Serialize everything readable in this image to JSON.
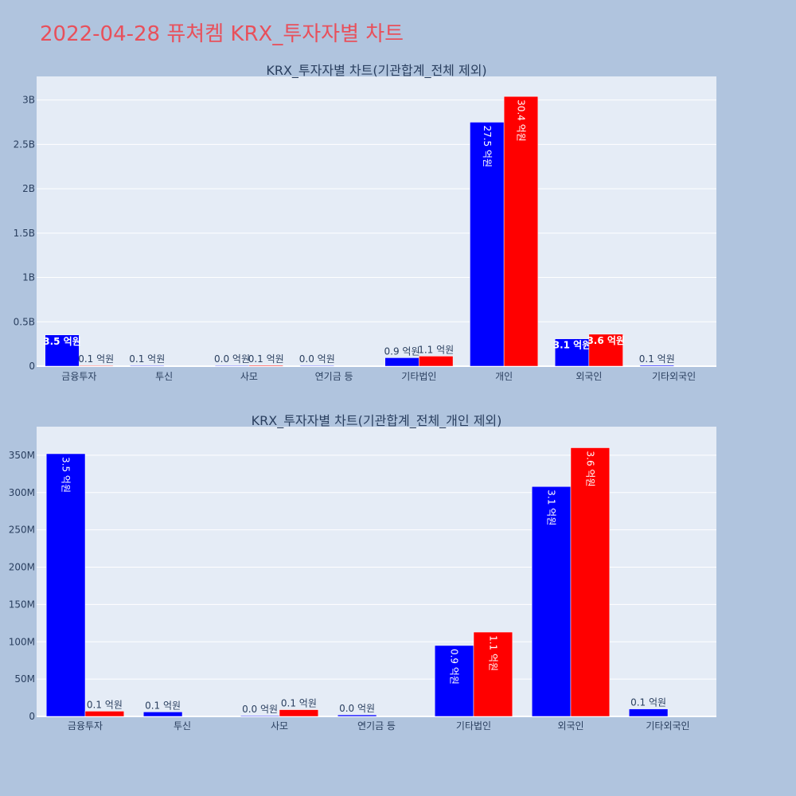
{
  "page": {
    "title": "2022-04-28 퓨쳐켐 KRX_투자자별 차트"
  },
  "colors": {
    "series_a": "#0000ff",
    "series_b": "#ff0000",
    "plot_bg": "#e5ecf6",
    "page_bg": "#b0c4de",
    "title": "#e8505b"
  },
  "chart_data": [
    {
      "type": "bar",
      "title": "KRX_투자자별 차트(기관합계_전체 제외)",
      "categories": [
        "금융투자",
        "투신",
        "사모",
        "연기금 등",
        "기타법인",
        "개인",
        "외국인",
        "기타외국인"
      ],
      "series": [
        {
          "values": [
            352000000,
            6000000,
            1000000,
            2000000,
            95000000,
            2750000000,
            308000000,
            10000000
          ],
          "labels": [
            "3.5 억원",
            "0.1 억원",
            "0.0 억원",
            "0.0 억원",
            "0.9 억원",
            "27.5 억원",
            "3.1 억원",
            "0.1 억원"
          ]
        },
        {
          "values": [
            7000000,
            null,
            9000000,
            null,
            113000000,
            3040000000,
            360000000,
            null
          ],
          "labels": [
            "0.1 억원",
            null,
            "0.1 억원",
            null,
            "1.1 억원",
            "30.4 억원",
            "3.6 억원",
            null
          ]
        }
      ],
      "ylim": [
        0,
        3230000000
      ],
      "yticks": [
        0,
        500000000,
        1000000000,
        1500000000,
        2000000000,
        2500000000,
        3000000000
      ],
      "yticklabels": [
        "0",
        "0.5B",
        "1B",
        "1.5B",
        "2B",
        "2.5B",
        "3B"
      ],
      "grid": true,
      "text_position": "inside-horizontal"
    },
    {
      "type": "bar",
      "title": "KRX_투자자별 차트(기관합계_전체_개인 제외)",
      "categories": [
        "금융투자",
        "투신",
        "사모",
        "연기금 등",
        "기타법인",
        "외국인",
        "기타외국인"
      ],
      "series": [
        {
          "values": [
            352000000,
            6000000,
            1000000,
            2000000,
            95000000,
            308000000,
            10000000
          ],
          "labels": [
            "3.5 억원",
            "0.1 억원",
            "0.0 억원",
            "0.0 억원",
            "0.9 억원",
            "3.1 억원",
            "0.1 억원"
          ]
        },
        {
          "values": [
            7000000,
            null,
            9000000,
            null,
            113000000,
            360000000,
            null
          ],
          "labels": [
            "0.1 억원",
            null,
            "0.1 억원",
            null,
            "1.1 억원",
            "3.6 억원",
            null
          ]
        }
      ],
      "ylim": [
        0,
        384000000
      ],
      "yticks": [
        0,
        50000000,
        100000000,
        150000000,
        200000000,
        250000000,
        300000000,
        350000000
      ],
      "yticklabels": [
        "0",
        "50M",
        "100M",
        "150M",
        "200M",
        "250M",
        "300M",
        "350M"
      ],
      "grid": true,
      "text_position": "inside-vertical"
    }
  ]
}
